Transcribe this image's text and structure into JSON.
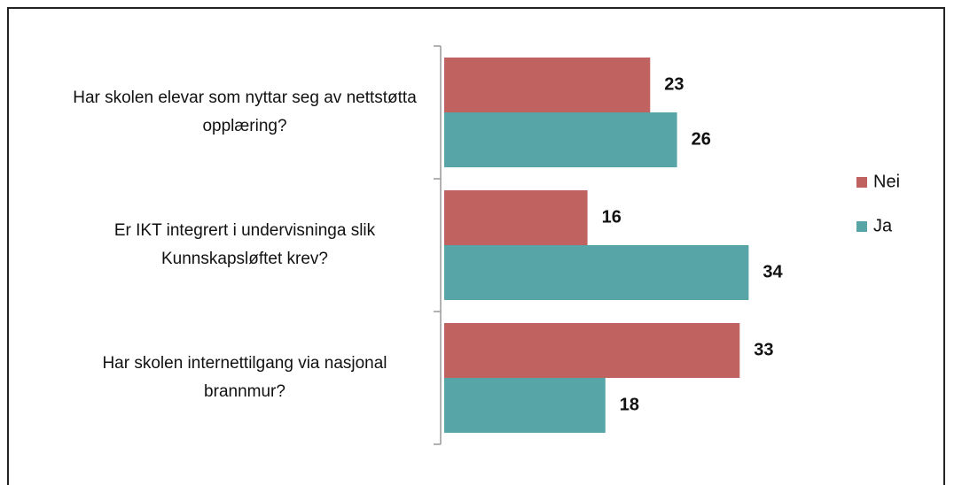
{
  "chart_data": {
    "type": "bar",
    "orientation": "horizontal",
    "categories": [
      "Har skolen elevar som nyttar seg av nettstøtta opplæring?",
      "Er IKT integrert i undervisninga slik Kunnskapsløftet krev?",
      "Har skolen internettilgang via nasjonal brannmur?"
    ],
    "series": [
      {
        "name": "Nei",
        "color": "#c0625f",
        "values": [
          23,
          16,
          33
        ]
      },
      {
        "name": "Ja",
        "color": "#58a5a8",
        "values": [
          26,
          34,
          18
        ]
      }
    ],
    "legend": "right"
  }
}
